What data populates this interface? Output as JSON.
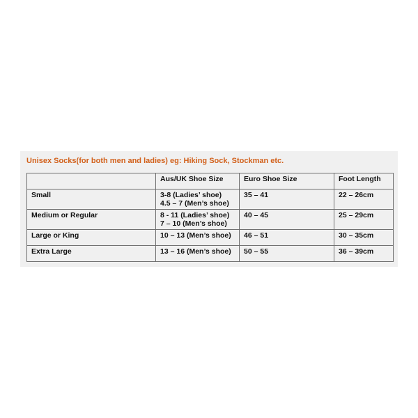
{
  "title": "Unisex Socks(for both men and ladies) eg: Hiking Sock, Stockman etc.",
  "colors": {
    "title": "#d2601a",
    "panel": "#f0f0f0"
  },
  "table": {
    "headers": [
      "",
      "Aus/UK Shoe Size",
      "Euro Shoe Size",
      "Foot Length"
    ],
    "rows": [
      {
        "size": "Small",
        "aus_uk": [
          "3-8 (Ladies’ shoe)",
          "4.5 – 7 (Men’s shoe)"
        ],
        "euro": "35 – 41",
        "foot": "22 – 26cm"
      },
      {
        "size": "Medium or Regular",
        "aus_uk": [
          "8 - 11 (Ladies’ shoe)",
          "7 – 10 (Men’s shoe)"
        ],
        "euro": "40 – 45",
        "foot": "25 – 29cm"
      },
      {
        "size": "Large or King",
        "aus_uk": [
          "10 – 13 (Men’s shoe)"
        ],
        "euro": "46 – 51",
        "foot": "30 – 35cm"
      },
      {
        "size": "Extra Large",
        "aus_uk": [
          "13 – 16 (Men’s shoe)"
        ],
        "euro": "50 – 55",
        "foot": "36 – 39cm"
      }
    ]
  }
}
